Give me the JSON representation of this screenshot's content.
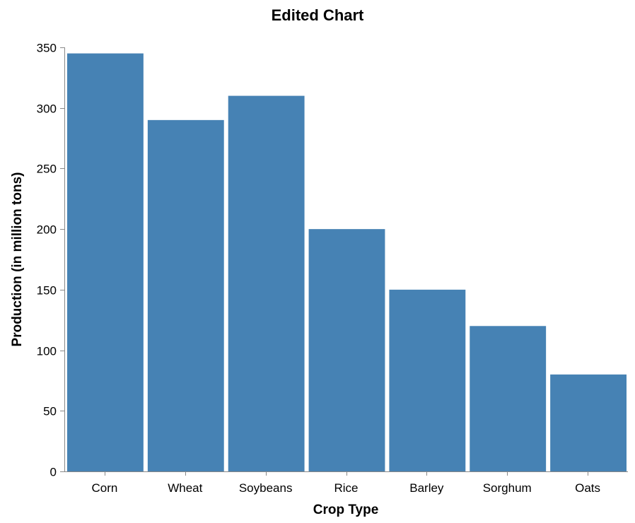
{
  "chart_data": {
    "type": "bar",
    "title": "Edited Chart",
    "xlabel": "Crop Type",
    "ylabel": "Production (in million tons)",
    "categories": [
      "Corn",
      "Wheat",
      "Soybeans",
      "Rice",
      "Barley",
      "Sorghum",
      "Oats"
    ],
    "values": [
      345,
      290,
      310,
      200,
      150,
      120,
      80
    ],
    "ylim": [
      0,
      350
    ],
    "yticks": [
      0,
      50,
      100,
      150,
      200,
      250,
      300,
      350
    ],
    "bar_color": "#4682b4",
    "grid": false,
    "legend": "none"
  }
}
